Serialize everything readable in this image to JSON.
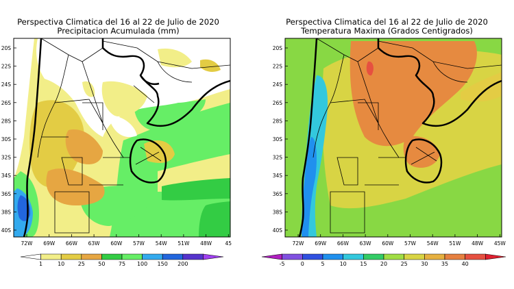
{
  "panels": [
    {
      "title_line1": "Perspectiva Climatica del 16 al 22 de Julio de 2020",
      "title_line2": "Precipitacion Acumulada (mm)",
      "lat_labels": [
        "20S",
        "22S",
        "24S",
        "26S",
        "28S",
        "30S",
        "32S",
        "34S",
        "36S",
        "38S",
        "40S"
      ],
      "lon_labels": [
        "72W",
        "69W",
        "66W",
        "63W",
        "60W",
        "57W",
        "54W",
        "51W",
        "48W",
        "45"
      ],
      "colorbar": {
        "colors": [
          "#ffffff",
          "#f2ee88",
          "#e3cc44",
          "#e6a642",
          "#33cc44",
          "#66ee66",
          "#33aaee",
          "#2266dd",
          "#5533cc",
          "#a040f0"
        ],
        "labels": [
          "1",
          "10",
          "25",
          "50",
          "75",
          "100",
          "150",
          "200"
        ]
      }
    },
    {
      "title_line1": "Perspectiva Climatica del 16 al 22 de Julio de 2020",
      "title_line2": "Temperatura Maxima (Grados Centigrados)",
      "lat_labels": [
        "20S",
        "22S",
        "24S",
        "26S",
        "28S",
        "30S",
        "32S",
        "34S",
        "36S",
        "38S",
        "40S"
      ],
      "lon_labels": [
        "72W",
        "69W",
        "66W",
        "63W",
        "60W",
        "57W",
        "54W",
        "51W",
        "48W",
        "45W"
      ],
      "colorbar": {
        "colors": [
          "#b020c0",
          "#8050e0",
          "#3050e0",
          "#2090ee",
          "#33c8dd",
          "#33cc66",
          "#a0dd44",
          "#d8d444",
          "#e6b040",
          "#e68040",
          "#e65040",
          "#e02030"
        ],
        "labels": [
          "-5",
          "0",
          "5",
          "10",
          "15",
          "20",
          "25",
          "30",
          "35",
          "40"
        ]
      }
    }
  ],
  "colors": {
    "precip_white": "#ffffff",
    "precip_yellow": "#f2ee88",
    "precip_gold": "#e3cc44",
    "precip_orange": "#e6a642",
    "precip_green": "#33cc44",
    "precip_lightgreen": "#66ee66",
    "precip_blue": "#33aaee",
    "precip_darkblue": "#2266dd",
    "temp_green": "#88d844",
    "temp_yellow": "#d8d444",
    "temp_orange": "#e68a40",
    "temp_red": "#e65040",
    "temp_cyan": "#33c8dd",
    "temp_blue": "#2090ee"
  }
}
